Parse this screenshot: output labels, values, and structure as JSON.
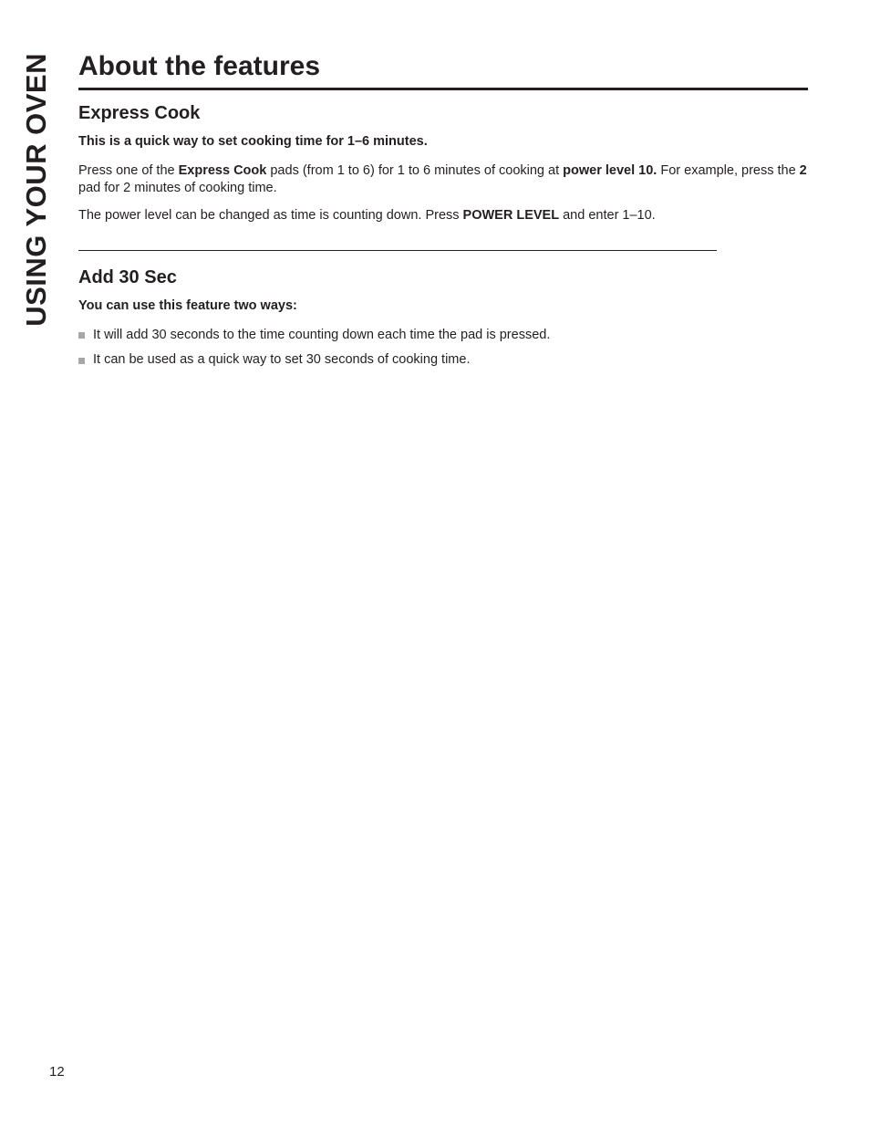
{
  "sideTab": "USING YOUR OVEN",
  "title": "About the features",
  "sections": {
    "express": {
      "heading": "Express Cook",
      "lead": "This is a quick way to set cooking time for 1–6 minutes.",
      "p1_a": "Press one of the ",
      "p1_b": "Express Cook",
      "p1_c": "  pads (from 1 to 6) for 1 to 6 minutes of cooking at ",
      "p1_d": "power level 10.",
      "p1_e": " For example, press the ",
      "p1_f": "2",
      "p1_g": "  pad for 2 minutes of cooking time.",
      "p2_a": "The power level can be changed as time is counting down. Press ",
      "p2_b": "POWER LEVEL",
      "p2_c": " and enter 1–10."
    },
    "add30": {
      "heading": "Add 30 Sec",
      "lead": "You can use this feature two ways:",
      "li1": "It will add 30 seconds to the time counting down each time the pad is pressed.",
      "li2": "It can be used as a quick way to set 30 seconds of cooking time."
    }
  },
  "pageNumber": "12",
  "colors": {
    "text": "#231f20",
    "bullet": "#a7a7a7",
    "background": "#ffffff"
  }
}
